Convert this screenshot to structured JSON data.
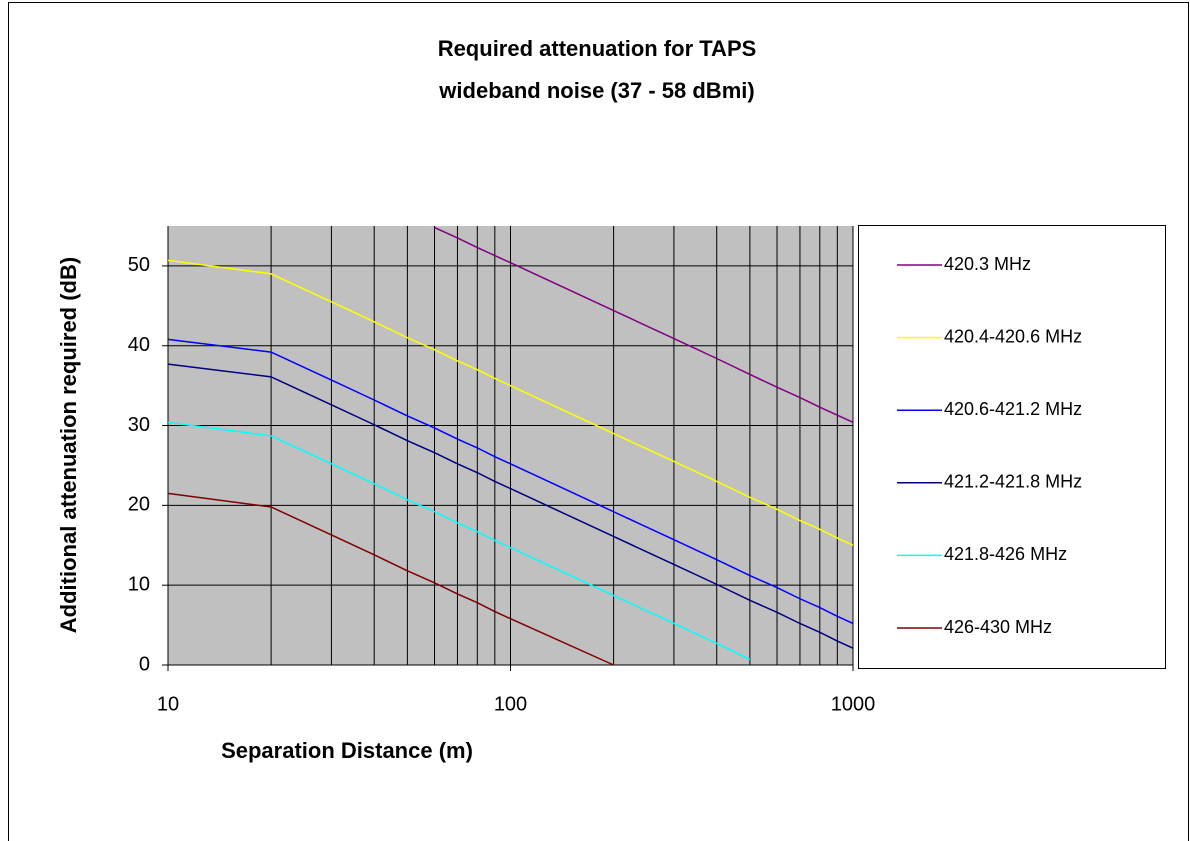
{
  "chart_data": {
    "type": "line",
    "title": [
      "Required attenuation for TAPS",
      "wideband noise (37 - 58 dBmi)"
    ],
    "x_label": "Separation Distance (m)",
    "y_label": "Additional attenuation required (dB)",
    "x_scale": "log",
    "xlim": [
      10,
      1000
    ],
    "ylim": [
      0,
      55
    ],
    "xticks": [
      10,
      100,
      1000
    ],
    "xgrid": [
      20,
      30,
      40,
      50,
      60,
      70,
      80,
      90,
      200,
      300,
      400,
      500,
      600,
      700,
      800,
      900
    ],
    "yticks": [
      0,
      10,
      20,
      30,
      40,
      50
    ],
    "grid": true,
    "plot_background": "#c0c0c0",
    "legend": "right",
    "x": [
      10,
      20,
      30,
      40,
      50,
      60,
      70,
      80,
      90,
      100,
      200,
      300,
      400,
      500,
      600,
      700,
      800,
      900,
      1000
    ],
    "series": [
      {
        "name": "420.3 MHz",
        "color": "#800080",
        "values": [
          null,
          null,
          null,
          null,
          null,
          54.8,
          53.5,
          52.3,
          51.3,
          50.4,
          44.4,
          40.9,
          38.4,
          36.4,
          34.8,
          33.5,
          32.3,
          31.3,
          30.4
        ]
      },
      {
        "name": "420.4-420.6 MHz",
        "color": "#ffff00",
        "values": [
          50.7,
          49.0,
          45.5,
          43.0,
          41.0,
          39.5,
          38.1,
          37.0,
          35.9,
          35.0,
          29.0,
          25.5,
          23.0,
          21.0,
          19.5,
          18.1,
          17.0,
          15.9,
          15.0
        ]
      },
      {
        "name": "420.6-421.2 MHz",
        "color": "#0000ff",
        "values": [
          40.8,
          39.2,
          35.7,
          33.2,
          31.2,
          29.7,
          28.3,
          27.2,
          26.1,
          25.2,
          19.2,
          15.7,
          13.2,
          11.2,
          9.7,
          8.3,
          7.2,
          6.1,
          5.2
        ]
      },
      {
        "name": "421.2-421.8 MHz",
        "color": "#000080",
        "values": [
          37.7,
          36.1,
          32.6,
          30.1,
          28.1,
          26.6,
          25.2,
          24.1,
          23.0,
          22.1,
          16.1,
          12.6,
          10.1,
          8.1,
          6.6,
          5.2,
          4.1,
          3.0,
          2.1
        ]
      },
      {
        "name": "421.8-426 MHz",
        "color": "#00ffff",
        "values": [
          30.4,
          28.7,
          25.2,
          22.7,
          20.7,
          19.2,
          17.8,
          16.7,
          15.6,
          14.7,
          8.7,
          5.2,
          2.7,
          0.7,
          null,
          null,
          null,
          null,
          null
        ]
      },
      {
        "name": "426-430 MHz",
        "color": "#800000",
        "values": [
          21.5,
          19.8,
          16.3,
          13.8,
          11.8,
          10.3,
          8.9,
          7.8,
          6.7,
          5.8,
          0,
          null,
          null,
          null,
          null,
          null,
          null,
          null,
          null
        ]
      }
    ]
  }
}
